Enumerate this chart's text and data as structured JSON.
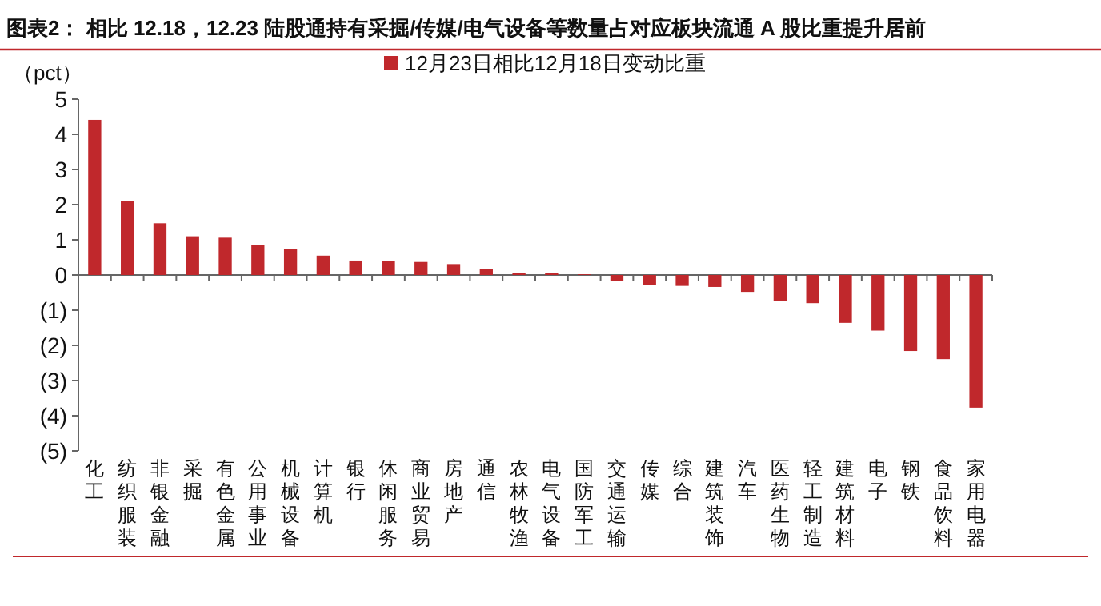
{
  "chart_data": {
    "type": "bar",
    "title": "图表2： 相比 12.18，12.23 陆股通持有采掘/传媒/电气设备等数量占对应板块流通 A 股比重提升居前",
    "ylabel": "（pct）",
    "categories": [
      "化工",
      "纺织服装",
      "非银金融",
      "采掘",
      "有色金属",
      "公用事业",
      "机械设备",
      "计算机",
      "银行",
      "休闲服务",
      "商业贸易",
      "房地产",
      "通信",
      "农林牧渔",
      "电气设备",
      "国防军工",
      "交通运输",
      "传媒",
      "综合",
      "建筑装饰",
      "汽车",
      "医药生物",
      "轻工制造",
      "建筑材料",
      "电子",
      "钢铁",
      "食品饮料",
      "家用电器"
    ],
    "series": [
      {
        "name": "12月23日相比12月18日变动比重",
        "color": "#c0282c",
        "values": [
          4.41,
          2.11,
          1.47,
          1.1,
          1.06,
          0.86,
          0.75,
          0.55,
          0.41,
          0.4,
          0.37,
          0.31,
          0.17,
          0.06,
          0.05,
          0.02,
          -0.18,
          -0.29,
          -0.31,
          -0.34,
          -0.48,
          -0.75,
          -0.8,
          -1.36,
          -1.58,
          -2.16,
          -2.39,
          -3.77
        ]
      }
    ],
    "ylim": [
      -5,
      5
    ],
    "yticks": [
      {
        "value": -5,
        "label": "(5)"
      },
      {
        "value": -4,
        "label": "(4)"
      },
      {
        "value": -3,
        "label": "(3)"
      },
      {
        "value": -2,
        "label": "(2)"
      },
      {
        "value": -1,
        "label": "(1)"
      },
      0,
      1,
      2,
      3,
      4,
      5
    ],
    "legend": "top"
  }
}
